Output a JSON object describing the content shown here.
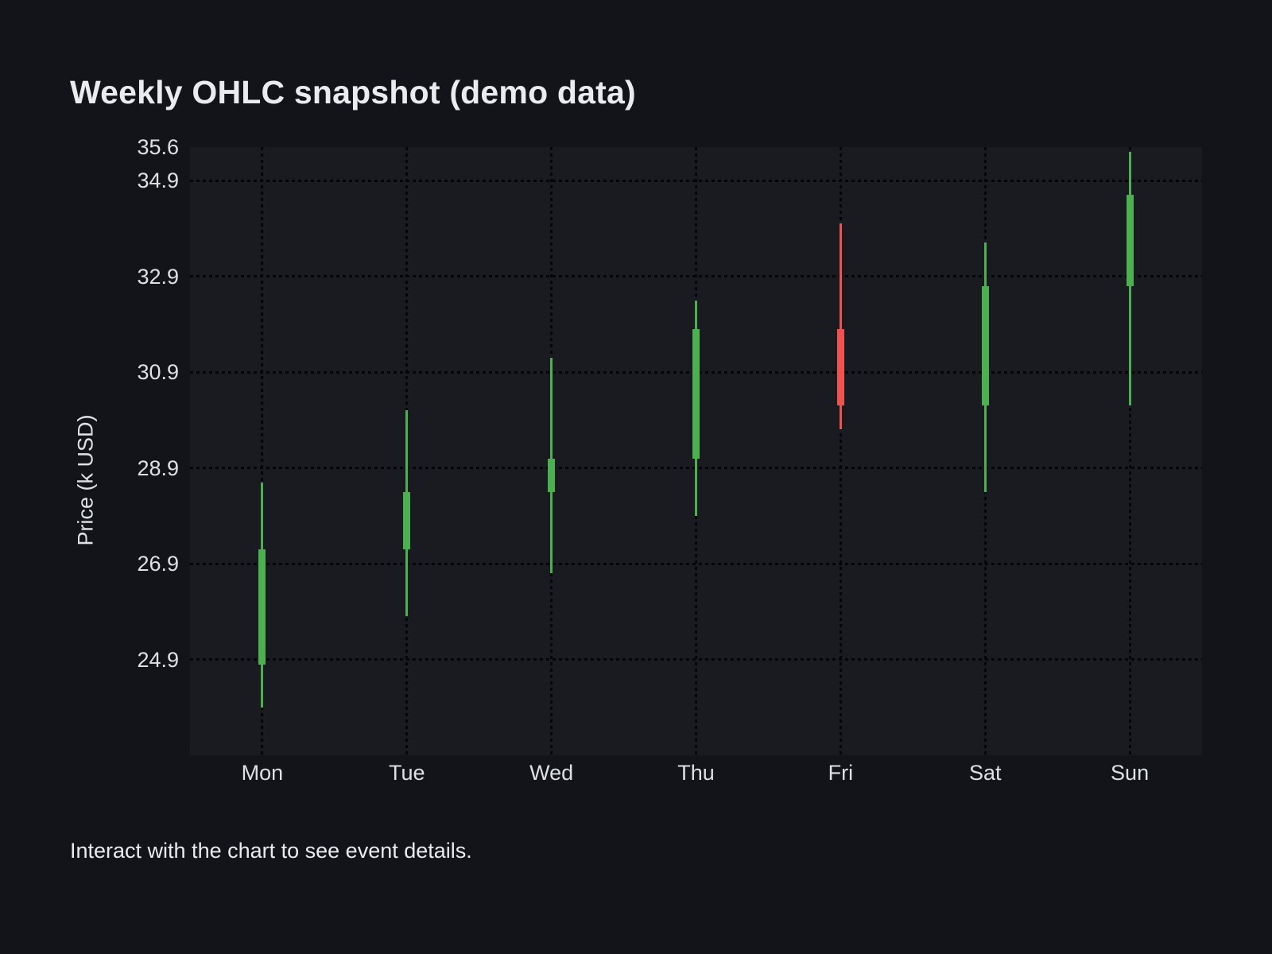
{
  "page": {
    "title": "Weekly OHLC snapshot (demo data)",
    "footer_hint": "Interact with the chart to see event details."
  },
  "colors": {
    "background": "#12141a",
    "plot_background": "#191b21",
    "grid": "#050609",
    "up": "#4caf50",
    "down": "#ef5350",
    "title_text": "#e9ebee",
    "axis_text": "#dde0e4"
  },
  "chart_data": {
    "type": "candlestick",
    "title": "Weekly OHLC snapshot (demo data)",
    "xlabel": "",
    "ylabel": "Price (k USD)",
    "categories": [
      "Mon",
      "Tue",
      "Wed",
      "Thu",
      "Fri",
      "Sat",
      "Sun"
    ],
    "series": [
      {
        "name": "weekly-ohlc",
        "points": [
          {
            "category": "Mon",
            "open": 24.8,
            "high": 28.6,
            "low": 23.9,
            "close": 27.2,
            "direction": "up"
          },
          {
            "category": "Tue",
            "open": 27.2,
            "high": 30.1,
            "low": 25.8,
            "close": 28.4,
            "direction": "up"
          },
          {
            "category": "Wed",
            "open": 28.4,
            "high": 31.2,
            "low": 26.7,
            "close": 29.1,
            "direction": "up"
          },
          {
            "category": "Thu",
            "open": 29.1,
            "high": 32.4,
            "low": 27.9,
            "close": 31.8,
            "direction": "up"
          },
          {
            "category": "Fri",
            "open": 31.8,
            "high": 34.0,
            "low": 29.7,
            "close": 30.2,
            "direction": "down"
          },
          {
            "category": "Sat",
            "open": 30.2,
            "high": 33.6,
            "low": 28.4,
            "close": 32.7,
            "direction": "up"
          },
          {
            "category": "Sun",
            "open": 32.7,
            "high": 35.5,
            "low": 30.2,
            "close": 34.6,
            "direction": "up"
          }
        ]
      }
    ],
    "ylim": [
      22.9,
      35.6
    ],
    "y_ticks": [
      {
        "label": "35.6",
        "value": 35.6,
        "gridline": false
      },
      {
        "label": "34.9",
        "value": 34.9,
        "gridline": true
      },
      {
        "label": "32.9",
        "value": 32.9,
        "gridline": true
      },
      {
        "label": "30.9",
        "value": 30.9,
        "gridline": true
      },
      {
        "label": "28.9",
        "value": 28.9,
        "gridline": true
      },
      {
        "label": "26.9",
        "value": 26.9,
        "gridline": true
      },
      {
        "label": "24.9",
        "value": 24.9,
        "gridline": true
      }
    ],
    "grid_style": "dotted",
    "legend": "none"
  }
}
